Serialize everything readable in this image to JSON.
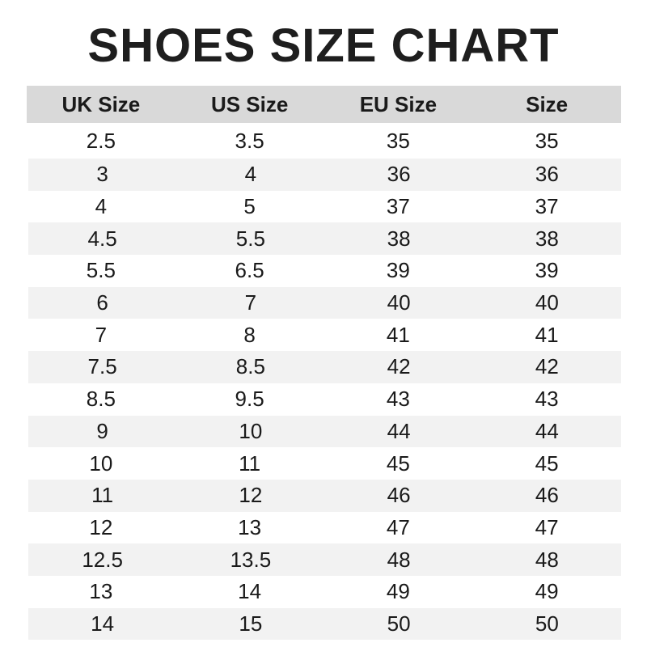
{
  "title": "SHOES SIZE CHART",
  "headers": [
    "UK Size",
    "US Size",
    "EU Size",
    "Size"
  ],
  "rows": [
    [
      "2.5",
      "3.5",
      "35",
      "35"
    ],
    [
      "3",
      "4",
      "36",
      "36"
    ],
    [
      "4",
      "5",
      "37",
      "37"
    ],
    [
      "4.5",
      "5.5",
      "38",
      "38"
    ],
    [
      "5.5",
      "6.5",
      "39",
      "39"
    ],
    [
      "6",
      "7",
      "40",
      "40"
    ],
    [
      "7",
      "8",
      "41",
      "41"
    ],
    [
      "7.5",
      "8.5",
      "42",
      "42"
    ],
    [
      "8.5",
      "9.5",
      "43",
      "43"
    ],
    [
      "9",
      "10",
      "44",
      "44"
    ],
    [
      "10",
      "11",
      "45",
      "45"
    ],
    [
      "11",
      "12",
      "46",
      "46"
    ],
    [
      "12",
      "13",
      "47",
      "47"
    ],
    [
      "12.5",
      "13.5",
      "48",
      "48"
    ],
    [
      "13",
      "14",
      "49",
      "49"
    ],
    [
      "14",
      "15",
      "50",
      "50"
    ]
  ],
  "colors": {
    "header_bg": "#d9d9d9",
    "stripe_bg": "#f2f2f2"
  }
}
